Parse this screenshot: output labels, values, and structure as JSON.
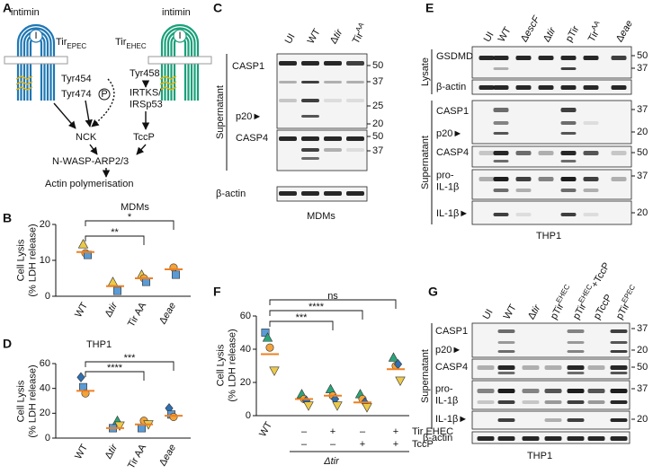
{
  "diagram": {
    "letter": "A",
    "left_intimin": "intimin",
    "left_i": "I",
    "left_tir": [
      {
        "text": "Tir"
      },
      {
        "text": "EPEC",
        "style": "sub"
      }
    ],
    "right_intimin": "intimin",
    "right_i": "I",
    "right_tir": [
      {
        "text": "Tir"
      },
      {
        "text": "EHEC",
        "style": "sub"
      }
    ],
    "tyr454": "Tyr454",
    "tyr474": "Tyr474",
    "phospho": "P",
    "tyr458": "Tyr458",
    "irtks": [
      "IRTKS/",
      "IRSp53"
    ],
    "nck": "NCK",
    "tccp": "TccP",
    "nwasp": "N-WASP-ARP2/3",
    "actin": "Actin polymerisation"
  },
  "blots": [
    {
      "letter": "C",
      "lanes": [
        "UI",
        "WT",
        [
          {
            "text": "Δ"
          },
          {
            "text": "tir",
            "style": "italic"
          }
        ],
        [
          {
            "text": "Tir"
          },
          {
            "text": "AA",
            "style": "sup"
          }
        ]
      ],
      "rows": [
        "CASP1",
        "p20►",
        "CASP4",
        "β-actin"
      ],
      "groups": [
        {
          "label": "Supernatant"
        }
      ],
      "markers": [
        50,
        37,
        25,
        20,
        50,
        37
      ],
      "caption": "MDMs"
    },
    {
      "letter": "E",
      "lanes": [
        "UI",
        "WT",
        [
          {
            "text": "Δ"
          },
          {
            "text": "escF",
            "style": "italic"
          }
        ],
        [
          {
            "text": "Δ"
          },
          {
            "text": "tir",
            "style": "italic"
          }
        ],
        "pTir",
        [
          {
            "text": "Tir"
          },
          {
            "text": "AA",
            "style": "sup"
          }
        ],
        [
          {
            "text": "Δ"
          },
          {
            "text": "eae",
            "style": "italic"
          }
        ]
      ],
      "rows": [
        "GSDMD",
        "β-actin",
        "CASP1",
        "p20►",
        "CASP4",
        [
          "pro-",
          "IL-1β"
        ],
        "IL-1β►"
      ],
      "groups": [
        {
          "label": "Lysate"
        },
        {
          "label": "Supernatant"
        }
      ],
      "markers": [
        50,
        37,
        37,
        20,
        50,
        37,
        20
      ],
      "caption": "THP1"
    },
    {
      "letter": "G",
      "lanes": [
        "UI",
        "WT",
        [
          {
            "text": "Δ"
          },
          {
            "text": "tir",
            "style": "italic"
          }
        ],
        [
          {
            "text": "pTir"
          },
          {
            "text": "EHEC",
            "style": "sup"
          }
        ],
        [
          {
            "text": "pTir"
          },
          {
            "text": "EHEC",
            "style": "sup"
          },
          {
            "text": "+TccP"
          }
        ],
        "pTccP",
        [
          {
            "text": "pTir"
          },
          {
            "text": "EPEC",
            "style": "sup"
          }
        ]
      ],
      "rows": [
        "CASP1",
        "p20►",
        "CASP4",
        [
          "pro-",
          "IL-1β"
        ],
        "IL-1β►",
        "β-actin"
      ],
      "groups": [
        {
          "label": "Supernatant"
        }
      ],
      "markers": [
        37,
        20,
        50,
        37,
        20
      ],
      "caption": "THP1"
    }
  ],
  "chart_data": [
    {
      "type": "dot",
      "letter": "B",
      "title": "MDMs",
      "y_label": [
        "Cell Lysis",
        "(% LDH release)"
      ],
      "categories": [
        "WT",
        [
          {
            "text": "Δ"
          },
          {
            "text": "tir",
            "style": "italic"
          }
        ],
        "Tir AA",
        [
          {
            "text": "Δ"
          },
          {
            "text": "eae",
            "style": "italic"
          }
        ]
      ],
      "series": [
        {
          "marker": "triangle",
          "color": "#ecc94b",
          "values": [
            14.5,
            4,
            6,
            null
          ]
        },
        {
          "marker": "circle",
          "color": "#f2a33a",
          "values": [
            12,
            null,
            5,
            8
          ]
        },
        {
          "marker": "square",
          "color": "#5b9bd5",
          "values": [
            11.5,
            1.5,
            4,
            6
          ]
        }
      ],
      "medians": [
        12.3,
        2.8,
        5,
        7.5
      ],
      "median_color": "#f07f1f",
      "ylim": [
        0,
        20
      ],
      "yticks": [
        0,
        10,
        20
      ],
      "significance": [
        {
          "from": 0,
          "to": 2,
          "label": "**"
        },
        {
          "from": 0,
          "to": 3,
          "label": "*"
        }
      ]
    },
    {
      "type": "dot",
      "letter": "D",
      "title": "THP1",
      "y_label": [
        "Cell Lysis",
        "(% LDH release)"
      ],
      "categories": [
        "WT",
        [
          {
            "text": "Δ"
          },
          {
            "text": "tir",
            "style": "italic"
          }
        ],
        "Tir AA",
        [
          {
            "text": "Δ"
          },
          {
            "text": "eae",
            "style": "italic"
          }
        ]
      ],
      "series": [
        {
          "marker": "diamond",
          "color": "#2f6fb0",
          "values": [
            49,
            null,
            null,
            24
          ]
        },
        {
          "marker": "square",
          "color": "#5b9bd5",
          "values": [
            41,
            8,
            8,
            19
          ]
        },
        {
          "marker": "circle",
          "color": "#f2a33a",
          "values": [
            36,
            null,
            14,
            17
          ]
        },
        {
          "marker": "triangle",
          "color": "#2aa57a",
          "values": [
            null,
            14,
            null,
            null
          ]
        },
        {
          "marker": "triangle-down",
          "color": "#ecc94b",
          "values": [
            null,
            10,
            11,
            null
          ]
        }
      ],
      "medians": [
        38,
        8,
        11,
        18
      ],
      "median_color": "#f07f1f",
      "ylim": [
        0,
        60
      ],
      "yticks": [
        0,
        20,
        40,
        60
      ],
      "significance": [
        {
          "from": 0,
          "to": 2,
          "label": "****"
        },
        {
          "from": 0,
          "to": 3,
          "label": "***"
        }
      ]
    },
    {
      "type": "dot",
      "letter": "F",
      "y_label": [
        "Cell Lysis",
        "(% LDH release)"
      ],
      "categories": [
        "WT",
        null,
        null,
        null,
        null
      ],
      "series": [
        {
          "marker": "square",
          "color": "#5b9bd5",
          "values": [
            50,
            null,
            null,
            null,
            null
          ]
        },
        {
          "marker": "triangle",
          "color": "#2aa57a",
          "values": [
            47,
            13,
            16,
            13,
            35
          ]
        },
        {
          "marker": "circle",
          "color": "#f2a33a",
          "values": [
            41,
            10,
            12,
            10,
            30
          ]
        },
        {
          "marker": "diamond",
          "color": "#2f6fb0",
          "values": [
            null,
            9,
            10,
            8,
            31
          ]
        },
        {
          "marker": "triangle-down",
          "color": "#ecc94b",
          "values": [
            27,
            6,
            6,
            5,
            21
          ]
        }
      ],
      "medians": [
        37,
        10,
        12,
        8,
        28
      ],
      "median_color": "#f07f1f",
      "ylim": [
        0,
        60
      ],
      "yticks": [
        0,
        20,
        40,
        60
      ],
      "significance": [
        {
          "from": 0,
          "to": 2,
          "label": "***"
        },
        {
          "from": 0,
          "to": 3,
          "label": "****"
        },
        {
          "from": 0,
          "to": 4,
          "label": "ns"
        }
      ],
      "conditions": [
        {
          "name": "Tir EHEC",
          "values": [
            null,
            "–",
            "+",
            "–",
            "+"
          ]
        },
        {
          "name": "TccP",
          "values": [
            null,
            "–",
            "–",
            "+",
            "+"
          ]
        }
      ],
      "group_label": "Δtir"
    }
  ]
}
